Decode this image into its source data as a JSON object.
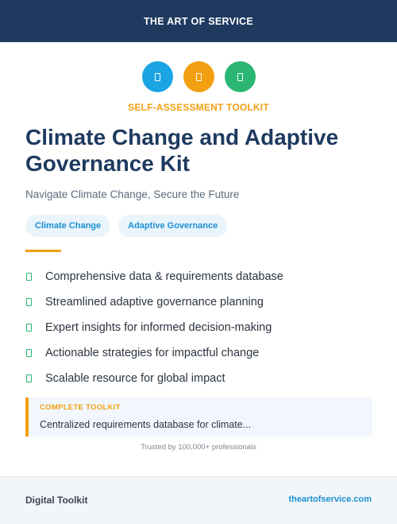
{
  "header": {
    "brand": "THE ART OF SERVICE"
  },
  "icons": [
    {
      "name": "book-icon",
      "color": "#1ba4e3"
    },
    {
      "name": "clipboard-icon",
      "color": "#f2a012"
    },
    {
      "name": "chart-icon",
      "color": "#2bb673"
    }
  ],
  "eyebrow": "SELF-ASSESSMENT TOOLKIT",
  "title": "Climate Change and Adaptive Governance Kit",
  "subtitle": "Navigate Climate Change, Secure the Future",
  "tags": [
    "Climate Change",
    "Adaptive Governance"
  ],
  "features": [
    "Comprehensive data & requirements database",
    "Streamlined adaptive governance planning",
    "Expert insights for informed decision-making",
    "Actionable strategies for impactful change",
    "Scalable resource for global impact"
  ],
  "toolkit": {
    "label": "COMPLETE TOOLKIT",
    "description": "Centralized requirements database for climate..."
  },
  "trusted": "Trusted by 100,000+ professionals",
  "footer": {
    "left": "Digital Toolkit",
    "right": "theartofservice.com"
  }
}
